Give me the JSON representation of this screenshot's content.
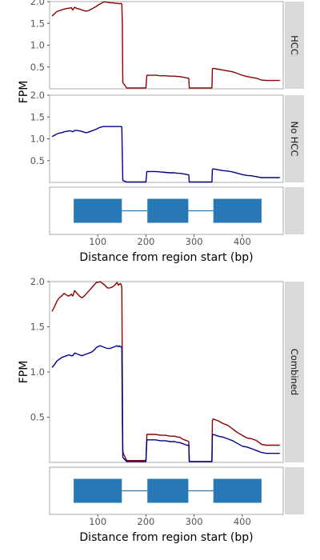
{
  "colors": {
    "hcc": "#8B0000",
    "no_hcc": "#00008B",
    "exon": "#2878B5",
    "intron": "#2878B5",
    "strip": "#D9D9D9",
    "panel_border": "#AAAAAA"
  },
  "chart_data": [
    {
      "type": "line",
      "facet_strips": [
        "HCC",
        "No HCC"
      ],
      "ylabel": "FPM",
      "y_ticks": [
        "0.5",
        "1.0",
        "1.5",
        "2.0"
      ],
      "xlim": [
        0,
        485
      ],
      "series": [
        {
          "name": "HCC",
          "x": [
            5,
            10,
            15,
            20,
            25,
            30,
            35,
            40,
            45,
            48,
            52,
            57,
            62,
            67,
            72,
            77,
            82,
            87,
            92,
            97,
            102,
            107,
            112,
            117,
            122,
            127,
            132,
            137,
            141,
            145,
            148,
            149,
            150,
            151,
            152,
            153,
            160,
            200,
            202,
            205,
            210,
            220,
            230,
            240,
            250,
            260,
            265,
            270,
            275,
            280,
            285,
            289,
            290,
            291,
            295,
            300,
            310,
            320,
            330,
            337,
            338,
            340,
            350,
            360,
            370,
            380,
            390,
            400,
            410,
            420,
            430,
            440,
            450,
            460,
            470,
            478
          ],
          "y": [
            1.67,
            1.72,
            1.77,
            1.79,
            1.81,
            1.83,
            1.84,
            1.85,
            1.86,
            1.81,
            1.87,
            1.84,
            1.83,
            1.81,
            1.79,
            1.78,
            1.8,
            1.83,
            1.86,
            1.89,
            1.93,
            1.96,
            1.99,
            1.99,
            1.98,
            1.97,
            1.97,
            1.96,
            1.96,
            1.95,
            1.96,
            1.95,
            1.94,
            1.5,
            0.15,
            0.13,
            0.02,
            0.02,
            0.31,
            0.31,
            0.31,
            0.31,
            0.3,
            0.3,
            0.29,
            0.29,
            0.28,
            0.28,
            0.27,
            0.26,
            0.25,
            0.24,
            0.02,
            0.02,
            0.02,
            0.02,
            0.02,
            0.02,
            0.02,
            0.02,
            0.46,
            0.47,
            0.45,
            0.43,
            0.41,
            0.39,
            0.35,
            0.31,
            0.28,
            0.26,
            0.24,
            0.2,
            0.19,
            0.19,
            0.19,
            0.19
          ]
        },
        {
          "name": "No HCC",
          "x": [
            5,
            10,
            15,
            20,
            25,
            30,
            35,
            40,
            45,
            48,
            52,
            57,
            62,
            67,
            72,
            77,
            82,
            87,
            92,
            97,
            102,
            107,
            112,
            117,
            122,
            127,
            132,
            137,
            141,
            145,
            148,
            149,
            150,
            151,
            152,
            153,
            160,
            200,
            202,
            205,
            210,
            220,
            230,
            240,
            250,
            260,
            265,
            270,
            275,
            280,
            285,
            289,
            290,
            291,
            295,
            300,
            310,
            320,
            330,
            337,
            338,
            340,
            350,
            360,
            370,
            380,
            390,
            400,
            410,
            420,
            430,
            440,
            450,
            460,
            470,
            478
          ],
          "y": [
            1.05,
            1.08,
            1.11,
            1.13,
            1.14,
            1.16,
            1.17,
            1.18,
            1.18,
            1.16,
            1.19,
            1.19,
            1.18,
            1.17,
            1.15,
            1.14,
            1.16,
            1.18,
            1.2,
            1.22,
            1.25,
            1.27,
            1.28,
            1.28,
            1.28,
            1.28,
            1.28,
            1.28,
            1.28,
            1.28,
            1.28,
            1.28,
            1.27,
            0.6,
            0.05,
            0.04,
            0.01,
            0.01,
            0.25,
            0.25,
            0.25,
            0.25,
            0.24,
            0.23,
            0.22,
            0.22,
            0.21,
            0.21,
            0.2,
            0.19,
            0.18,
            0.17,
            0.01,
            0.01,
            0.01,
            0.01,
            0.01,
            0.01,
            0.01,
            0.01,
            0.3,
            0.31,
            0.29,
            0.27,
            0.26,
            0.24,
            0.21,
            0.18,
            0.16,
            0.15,
            0.13,
            0.11,
            0.11,
            0.11,
            0.11,
            0.11
          ]
        }
      ]
    },
    {
      "type": "line",
      "facet_strip": "Combined",
      "ylabel": "FPM",
      "y_ticks": [
        "0.5",
        "1.0",
        "1.5",
        "2.0"
      ],
      "xlim": [
        0,
        485
      ],
      "series": [
        {
          "name": "HCC",
          "x": [
            5,
            10,
            15,
            20,
            25,
            30,
            35,
            40,
            45,
            48,
            52,
            57,
            62,
            67,
            72,
            77,
            82,
            87,
            92,
            97,
            100,
            105,
            110,
            115,
            120,
            125,
            130,
            135,
            140,
            143,
            145,
            147,
            149,
            150,
            151,
            152,
            153,
            160,
            200,
            202,
            205,
            210,
            220,
            230,
            240,
            250,
            260,
            265,
            270,
            275,
            280,
            285,
            289,
            290,
            291,
            295,
            300,
            310,
            320,
            330,
            337,
            338,
            340,
            350,
            360,
            370,
            380,
            390,
            400,
            410,
            420,
            430,
            440,
            450,
            460,
            470,
            478
          ],
          "y": [
            1.67,
            1.72,
            1.78,
            1.82,
            1.84,
            1.87,
            1.85,
            1.84,
            1.86,
            1.84,
            1.9,
            1.87,
            1.84,
            1.82,
            1.84,
            1.87,
            1.9,
            1.93,
            1.96,
            1.99,
            1.99,
            2.0,
            1.98,
            1.96,
            1.93,
            1.93,
            1.94,
            1.96,
            1.99,
            1.96,
            1.97,
            1.98,
            1.96,
            1.93,
            1.0,
            0.13,
            0.1,
            0.02,
            0.02,
            0.31,
            0.31,
            0.31,
            0.31,
            0.3,
            0.3,
            0.29,
            0.29,
            0.28,
            0.28,
            0.26,
            0.25,
            0.24,
            0.23,
            0.01,
            0.01,
            0.01,
            0.01,
            0.01,
            0.01,
            0.01,
            0.01,
            0.47,
            0.48,
            0.46,
            0.43,
            0.41,
            0.37,
            0.33,
            0.3,
            0.27,
            0.26,
            0.24,
            0.2,
            0.19,
            0.19,
            0.19,
            0.19
          ]
        },
        {
          "name": "No HCC",
          "x": [
            5,
            10,
            15,
            20,
            25,
            30,
            35,
            40,
            45,
            48,
            52,
            57,
            62,
            67,
            72,
            77,
            82,
            87,
            92,
            97,
            100,
            105,
            110,
            115,
            120,
            125,
            130,
            135,
            140,
            143,
            145,
            147,
            149,
            150,
            151,
            152,
            153,
            160,
            200,
            202,
            205,
            210,
            220,
            230,
            240,
            250,
            260,
            265,
            270,
            275,
            280,
            285,
            289,
            290,
            291,
            295,
            300,
            310,
            320,
            330,
            337,
            338,
            340,
            350,
            360,
            370,
            380,
            390,
            400,
            410,
            420,
            430,
            440,
            450,
            460,
            470,
            478
          ],
          "y": [
            1.05,
            1.08,
            1.12,
            1.14,
            1.16,
            1.17,
            1.18,
            1.19,
            1.18,
            1.18,
            1.21,
            1.2,
            1.19,
            1.18,
            1.19,
            1.2,
            1.21,
            1.22,
            1.24,
            1.27,
            1.28,
            1.29,
            1.28,
            1.27,
            1.26,
            1.26,
            1.27,
            1.28,
            1.29,
            1.28,
            1.29,
            1.28,
            1.28,
            1.26,
            0.5,
            0.06,
            0.05,
            0.01,
            0.01,
            0.25,
            0.25,
            0.25,
            0.25,
            0.24,
            0.24,
            0.23,
            0.23,
            0.22,
            0.22,
            0.21,
            0.2,
            0.19,
            0.19,
            0.01,
            0.01,
            0.01,
            0.01,
            0.01,
            0.01,
            0.01,
            0.01,
            0.3,
            0.31,
            0.29,
            0.28,
            0.26,
            0.24,
            0.21,
            0.18,
            0.17,
            0.15,
            0.13,
            0.11,
            0.1,
            0.1,
            0.1,
            0.1
          ]
        }
      ]
    }
  ],
  "gene_model": {
    "exons": [
      [
        50,
        150
      ],
      [
        203,
        288
      ],
      [
        340,
        440
      ]
    ],
    "introns": [
      [
        150,
        203
      ],
      [
        288,
        340
      ]
    ]
  },
  "x_axis": {
    "label": "Distance from region start (bp)",
    "ticks": [
      100,
      200,
      300,
      400
    ],
    "tick_labels": [
      "100",
      "200",
      "300",
      "400"
    ]
  }
}
